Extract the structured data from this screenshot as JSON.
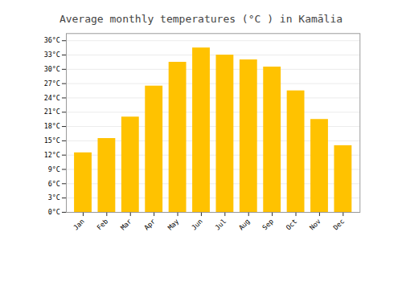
{
  "chart_data": {
    "type": "bar",
    "title": "Average monthly temperatures (°C ) in Kamālia",
    "categories": [
      "Jan",
      "Feb",
      "Mar",
      "Apr",
      "May",
      "Jun",
      "Jul",
      "Aug",
      "Sep",
      "Oct",
      "Nov",
      "Dec"
    ],
    "values": [
      12.5,
      15.5,
      20.0,
      26.5,
      31.5,
      34.5,
      33.0,
      32.0,
      30.5,
      25.5,
      19.5,
      14.0
    ],
    "color": "#FFC200",
    "ylim": [
      0,
      37.5
    ],
    "yticks": [
      {
        "value": 0,
        "label": "0°C"
      },
      {
        "value": 3,
        "label": "3°C"
      },
      {
        "value": 6,
        "label": "6°C"
      },
      {
        "value": 9,
        "label": "9°C"
      },
      {
        "value": 12,
        "label": "12°C"
      },
      {
        "value": 15,
        "label": "15°C"
      },
      {
        "value": 18,
        "label": "18°C"
      },
      {
        "value": 21,
        "label": "21°C"
      },
      {
        "value": 24,
        "label": "24°C"
      },
      {
        "value": 27,
        "label": "27°C"
      },
      {
        "value": 30,
        "label": "30°C"
      },
      {
        "value": 33,
        "label": "33°C"
      },
      {
        "value": 36,
        "label": "36°C"
      }
    ],
    "grid": true
  }
}
